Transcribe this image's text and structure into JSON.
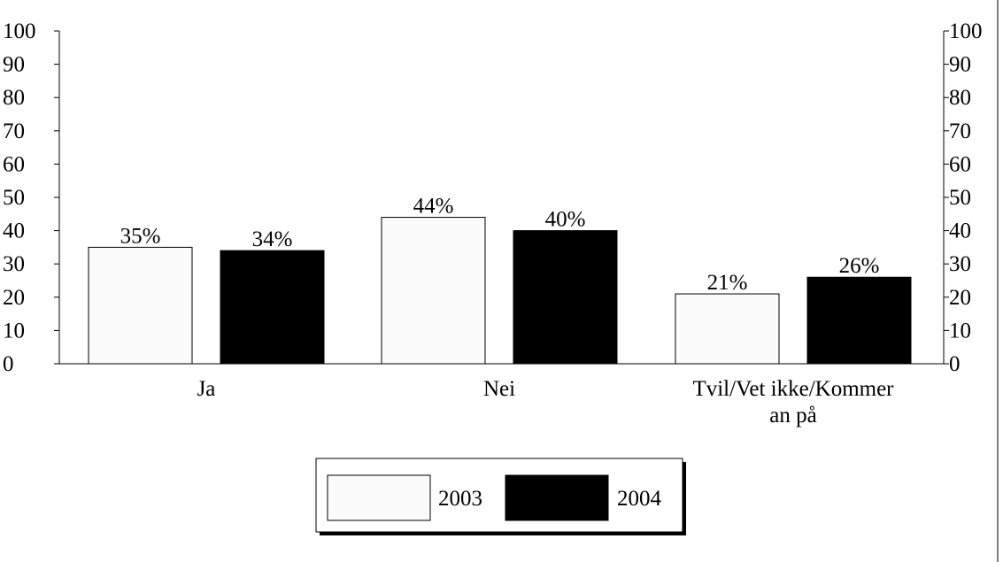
{
  "chart_data": {
    "type": "bar",
    "categories": [
      [
        "Ja"
      ],
      [
        "Nei"
      ],
      [
        "Tvil/Vet ikke/Kommer",
        "an på"
      ]
    ],
    "series": [
      {
        "name": "2003",
        "values": [
          35,
          44,
          21
        ],
        "labels": [
          "35%",
          "44%",
          "21%"
        ],
        "color": "#fbfbfb"
      },
      {
        "name": "2004",
        "values": [
          34,
          40,
          26
        ],
        "labels": [
          "34%",
          "40%",
          "26%"
        ],
        "color": "#000000"
      }
    ],
    "ylim": [
      0,
      100
    ],
    "yticks": [
      0,
      10,
      20,
      30,
      40,
      50,
      60,
      70,
      80,
      90,
      100
    ],
    "ytick_labels": [
      "0",
      "10",
      "20",
      "30",
      "40",
      "50",
      "60",
      "70",
      "80",
      "90",
      "100"
    ],
    "secondary_axis": true,
    "grid": false,
    "legend": {
      "position": "bottom-center",
      "entries": [
        "2003",
        "2004"
      ]
    }
  }
}
